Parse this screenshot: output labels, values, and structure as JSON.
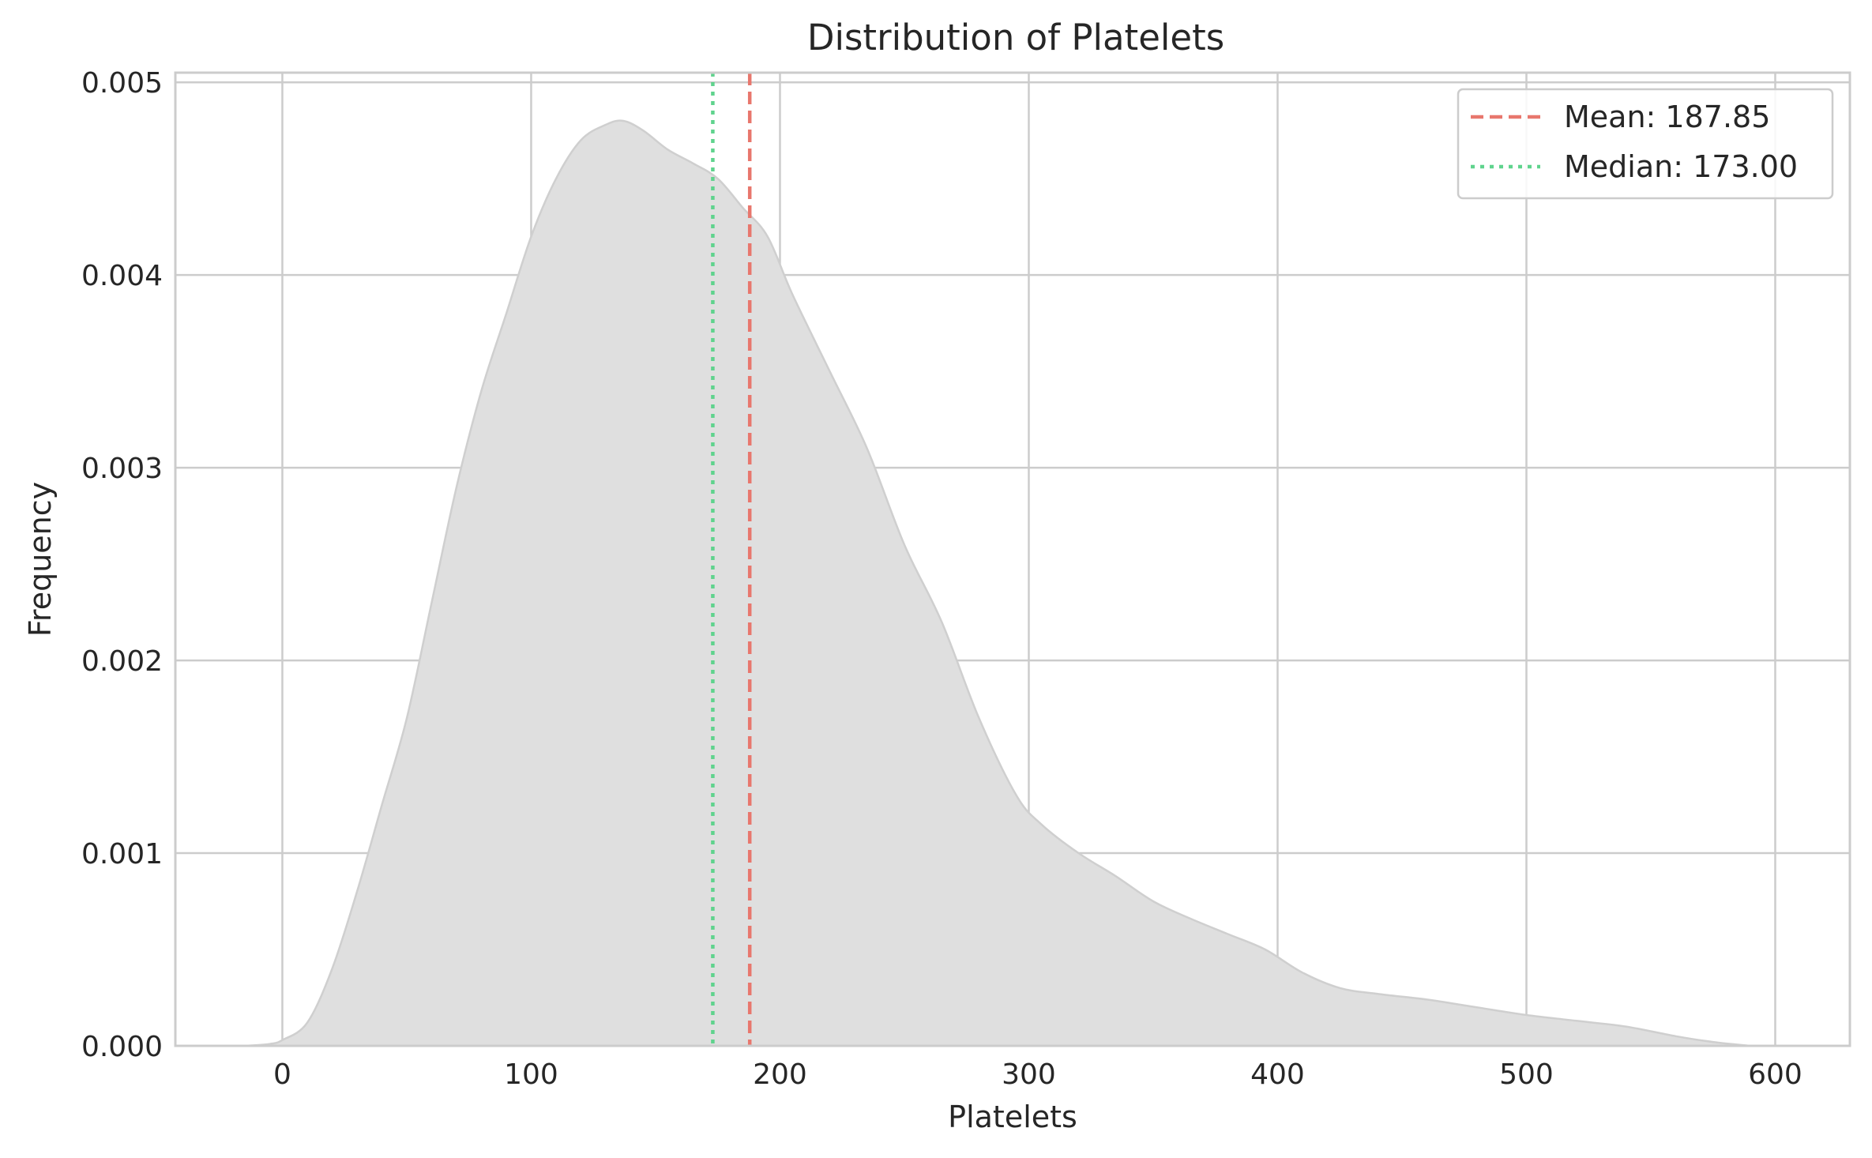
{
  "chart_data": {
    "type": "area",
    "title": "Distribution of Platelets",
    "xlabel": "Platelets",
    "ylabel": "Frequency",
    "xlim": [
      -43,
      630
    ],
    "ylim": [
      0,
      0.00505
    ],
    "xticks": [
      0,
      100,
      200,
      300,
      400,
      500,
      600
    ],
    "yticks": [
      0.0,
      0.001,
      0.002,
      0.003,
      0.004,
      0.005
    ],
    "ytick_labels": [
      "0.000",
      "0.001",
      "0.002",
      "0.003",
      "0.004",
      "0.005"
    ],
    "grid": true,
    "legend_position": "top-right",
    "series": [
      {
        "kind": "density",
        "color": "#dfdfdf",
        "edge_color": "#cfcfcf",
        "x": [
          -15,
          -5,
          0,
          10,
          20,
          30,
          40,
          50,
          60,
          70,
          80,
          90,
          100,
          110,
          120,
          130,
          137,
          145,
          155,
          165,
          175,
          185,
          195,
          205,
          220,
          235,
          250,
          265,
          280,
          295,
          305,
          320,
          335,
          350,
          365,
          380,
          395,
          410,
          425,
          440,
          460,
          480,
          500,
          520,
          540,
          560,
          575,
          590
        ],
        "y": [
          0.0,
          1e-05,
          3e-05,
          0.00012,
          0.0004,
          0.0008,
          0.00125,
          0.0017,
          0.0023,
          0.0029,
          0.0034,
          0.0038,
          0.0042,
          0.0045,
          0.0047,
          0.00478,
          0.0048,
          0.00475,
          0.00465,
          0.00458,
          0.0045,
          0.00435,
          0.0042,
          0.0039,
          0.0035,
          0.0031,
          0.0026,
          0.0022,
          0.0017,
          0.0013,
          0.00115,
          0.001,
          0.00088,
          0.00075,
          0.00066,
          0.00058,
          0.0005,
          0.00038,
          0.0003,
          0.00027,
          0.00024,
          0.0002,
          0.00016,
          0.00013,
          0.0001,
          5e-05,
          2e-05,
          0.0
        ]
      }
    ],
    "reference_lines": [
      {
        "name": "Mean: 187.85",
        "x": 187.85,
        "color": "#e8776d",
        "style": "dashed"
      },
      {
        "name": "Median: 173.00",
        "x": 173.0,
        "color": "#5fd38d",
        "style": "dotted"
      }
    ]
  }
}
